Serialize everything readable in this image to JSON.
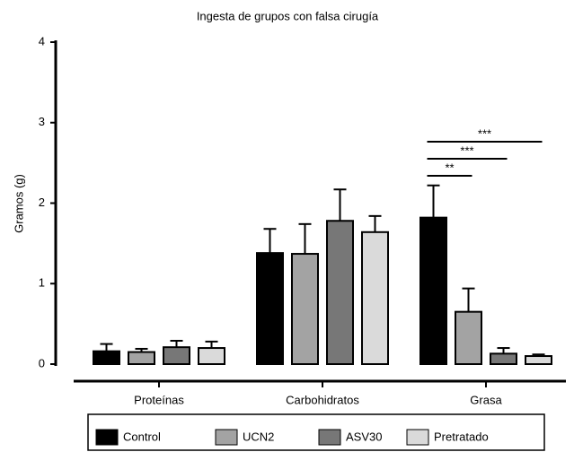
{
  "chart_data": {
    "type": "bar",
    "title": "Ingesta de grupos con falsa cirugía",
    "y_label": "Gramos (g)",
    "categories": [
      "Proteínas",
      "Carbohidratos",
      "Grasa"
    ],
    "series": [
      {
        "name": "Control",
        "color": "#000000",
        "values": [
          0.16,
          1.38,
          1.82
        ],
        "errors": [
          0.09,
          0.3,
          0.4
        ]
      },
      {
        "name": "UCN2",
        "color": "#a3a3a3",
        "values": [
          0.15,
          1.37,
          0.65
        ],
        "errors": [
          0.04,
          0.37,
          0.29
        ]
      },
      {
        "name": "ASV30",
        "color": "#777777",
        "values": [
          0.21,
          1.78,
          0.13
        ],
        "errors": [
          0.08,
          0.39,
          0.07
        ]
      },
      {
        "name": "Pretratado",
        "color": "#dadada",
        "values": [
          0.2,
          1.64,
          0.1
        ],
        "errors": [
          0.08,
          0.2,
          0.02
        ]
      }
    ],
    "ylim": [
      0,
      4
    ],
    "yticks": [
      0,
      1,
      2,
      3,
      4
    ],
    "annotations": [
      "**",
      "***",
      "***"
    ]
  }
}
